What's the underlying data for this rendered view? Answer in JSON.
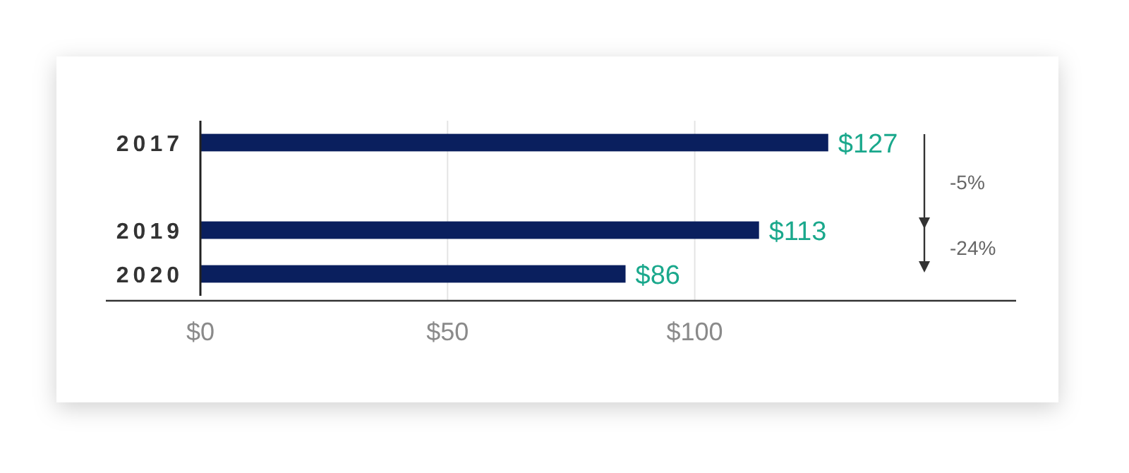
{
  "chart_data": {
    "type": "bar",
    "orientation": "horizontal",
    "categories": [
      "2017",
      null,
      "2019",
      "2020"
    ],
    "values": [
      127,
      null,
      113,
      86
    ],
    "color": "#0a1f5e",
    "value_labels": [
      "$127",
      null,
      "$113",
      "$86"
    ],
    "xlim": [
      0,
      165
    ],
    "xticks": [
      {
        "value": 0,
        "label": "$0"
      },
      {
        "value": 50,
        "label": "$50"
      },
      {
        "value": 100,
        "label": "$100"
      }
    ],
    "grid": "x",
    "annotations": [
      "-5%",
      "-24%"
    ]
  }
}
